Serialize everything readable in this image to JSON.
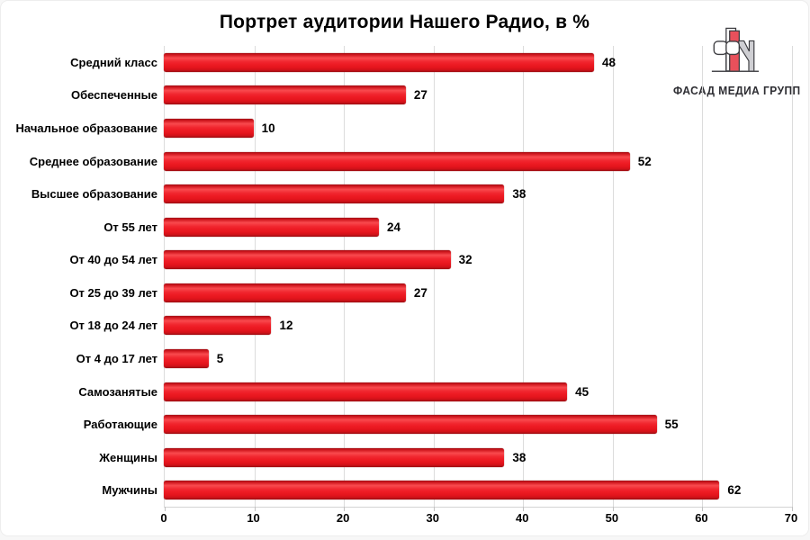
{
  "title": "Портрет аудитории Нашего Радио, в %",
  "logo": {
    "text": "ФАСАД МЕДИА ГРУПП",
    "icon": "fm-monogram-icon",
    "accent_color": "#e9505b",
    "text_color": "#2e2e33"
  },
  "chart_data": {
    "type": "bar",
    "orientation": "horizontal",
    "title": "Портрет аудитории Нашего Радио, в %",
    "categories": [
      "Средний класс",
      "Обеспеченные",
      "Начальное образование",
      "Среднее образование",
      "Высшее образование",
      "От 55 лет",
      "От 40 до 54 лет",
      "От 25 до 39 лет",
      "От 18 до 24 лет",
      "От 4 до 17 лет",
      "Самозанятые",
      "Работающие",
      "Женщины",
      "Мужчины"
    ],
    "values": [
      48,
      27,
      10,
      52,
      38,
      24,
      32,
      27,
      12,
      5,
      45,
      55,
      38,
      62
    ],
    "xlim": [
      0,
      70
    ],
    "x_ticks": [
      0,
      10,
      20,
      30,
      40,
      50,
      60,
      70
    ],
    "xlabel": "",
    "ylabel": "",
    "grid": true,
    "legend": false,
    "data_labels_shown": true,
    "bar_color": "#ee1c25",
    "gridline_color": "#dcdcdc",
    "label_color": "#000000"
  }
}
